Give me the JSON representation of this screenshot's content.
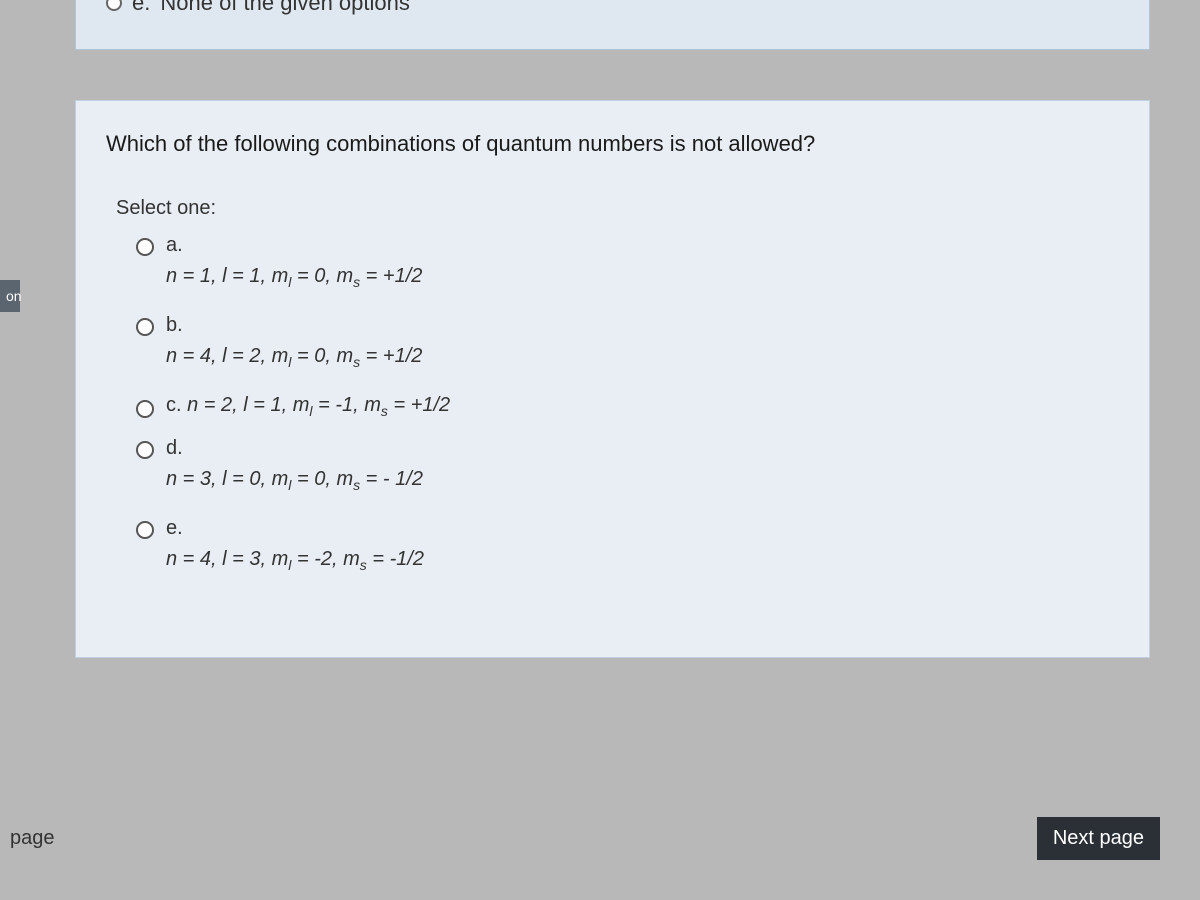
{
  "colors": {
    "page_bg": "#b8b8b8",
    "panel_bg": "#e8eef4",
    "panel_border": "#c0d0e0",
    "prev_panel_bg": "#dfe8f0",
    "sidebar_bg": "#5a6570",
    "next_btn_bg": "#2a3035",
    "text": "#333333"
  },
  "sidebar": {
    "label": "on"
  },
  "prev_question": {
    "option_letter": "e.",
    "option_text": "None of the given options"
  },
  "question": {
    "text": "Which of the following combinations of quantum numbers is not allowed?",
    "select_label": "Select one:",
    "options": [
      {
        "letter": "a.",
        "formula_html": "n = 1, l = 1, m<sub>l</sub> = 0, m<sub>s</sub> = +1/2",
        "inline": false
      },
      {
        "letter": "b.",
        "formula_html": "n = 4, l = 2, m<sub>l</sub> = 0, m<sub>s</sub> = +1/2",
        "inline": false
      },
      {
        "letter": "c.",
        "formula_html": "n = 2, l = 1, m<sub>l</sub> = -1, m<sub>s</sub> = +1/2",
        "inline": true
      },
      {
        "letter": "d.",
        "formula_html": "n = 3, l = 0, m<sub>l</sub> = 0, m<sub>s</sub> = - 1/2",
        "inline": false
      },
      {
        "letter": "e.",
        "formula_html": "n = 4, l = 3, m<sub>l</sub> = -2, m<sub>s</sub> = -1/2",
        "inline": false
      }
    ]
  },
  "nav": {
    "prev_label": "page",
    "next_label": "Next page"
  }
}
